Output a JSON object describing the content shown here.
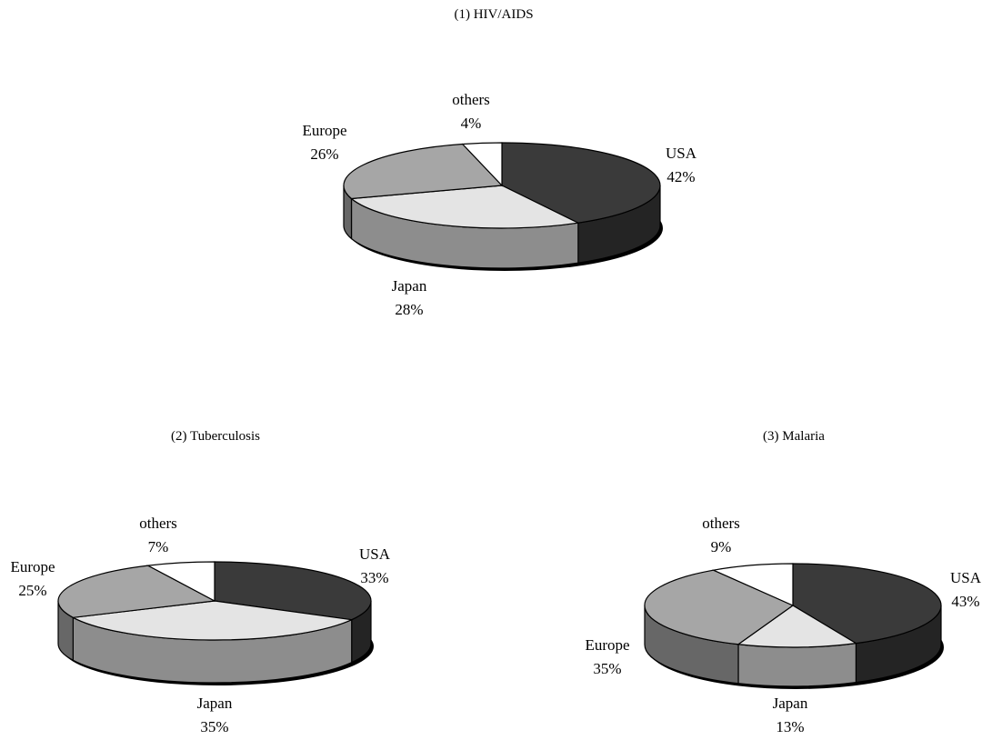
{
  "chart_data": [
    {
      "type": "pie",
      "title": "(1) HIV/AIDS",
      "slices": [
        {
          "label": "USA",
          "value": 42,
          "display": "42%",
          "color": "#3a3a3a"
        },
        {
          "label": "Japan",
          "value": 28,
          "display": "28%",
          "color": "#e4e4e4"
        },
        {
          "label": "Europe",
          "value": 26,
          "display": "26%",
          "color": "#a6a6a6"
        },
        {
          "label": "others",
          "value": 4,
          "display": "4%",
          "color": "#ffffff"
        }
      ]
    },
    {
      "type": "pie",
      "title": "(2) Tuberculosis",
      "slices": [
        {
          "label": "USA",
          "value": 33,
          "display": "33%",
          "color": "#3a3a3a"
        },
        {
          "label": "Japan",
          "value": 35,
          "display": "35%",
          "color": "#e4e4e4"
        },
        {
          "label": "Europe",
          "value": 25,
          "display": "25%",
          "color": "#a6a6a6"
        },
        {
          "label": "others",
          "value": 7,
          "display": "7%",
          "color": "#ffffff"
        }
      ]
    },
    {
      "type": "pie",
      "title": "(3) Malaria",
      "slices": [
        {
          "label": "USA",
          "value": 43,
          "display": "43%",
          "color": "#3a3a3a"
        },
        {
          "label": "Japan",
          "value": 13,
          "display": "13%",
          "color": "#e4e4e4"
        },
        {
          "label": "Europe",
          "value": 35,
          "display": "35%",
          "color": "#a6a6a6"
        },
        {
          "label": "others",
          "value": 9,
          "display": "9%",
          "color": "#ffffff"
        }
      ]
    }
  ]
}
